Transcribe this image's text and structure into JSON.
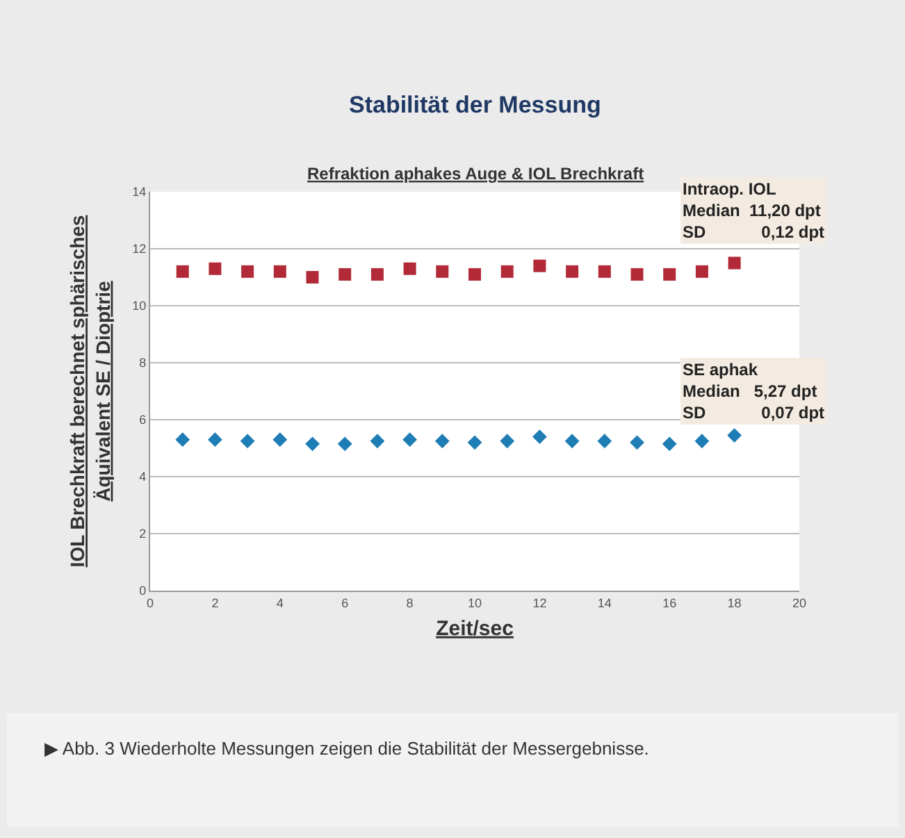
{
  "chart_data": {
    "type": "scatter",
    "title": "Stabilität der Messung",
    "subtitle": "Refraktion aphakes Auge & IOL Brechkraft",
    "xlabel": "Zeit/sec",
    "ylabel": "IOL Brechkraft berechnet sphärisches\nÄquivalent SE / Dioptrie",
    "x": [
      1,
      2,
      3,
      4,
      5,
      6,
      7,
      8,
      9,
      10,
      11,
      12,
      13,
      14,
      15,
      16,
      17,
      18
    ],
    "series": [
      {
        "color": "#b22a38",
        "marker": "square",
        "values": [
          11.2,
          11.3,
          11.2,
          11.2,
          11.0,
          11.1,
          11.1,
          11.3,
          11.2,
          11.1,
          11.2,
          11.4,
          11.2,
          11.2,
          11.1,
          11.1,
          11.2,
          11.5
        ]
      },
      {
        "color": "#1f7db5",
        "marker": "diamond",
        "values": [
          5.3,
          5.3,
          5.25,
          5.3,
          5.15,
          5.15,
          5.25,
          5.3,
          5.25,
          5.2,
          5.25,
          5.4,
          5.25,
          5.25,
          5.2,
          5.15,
          5.25,
          5.45
        ]
      }
    ],
    "xlim": [
      0,
      20
    ],
    "xticks": [
      0,
      2,
      4,
      6,
      8,
      10,
      12,
      14,
      16,
      18,
      20
    ],
    "ylim": [
      0,
      14
    ],
    "yticks": [
      0,
      2,
      4,
      6,
      8,
      10,
      12,
      14
    ],
    "grid": "y",
    "annotations": [
      "Intraop. IOL\nMedian  11,20 dpt\nSD            0,12 dpt",
      "SE aphak\nMedian   5,27 dpt\nSD            0,07 dpt",
      "▶ Abb. 3 Wiederholte Messungen zeigen die Stabilität der Messergebnisse."
    ]
  }
}
